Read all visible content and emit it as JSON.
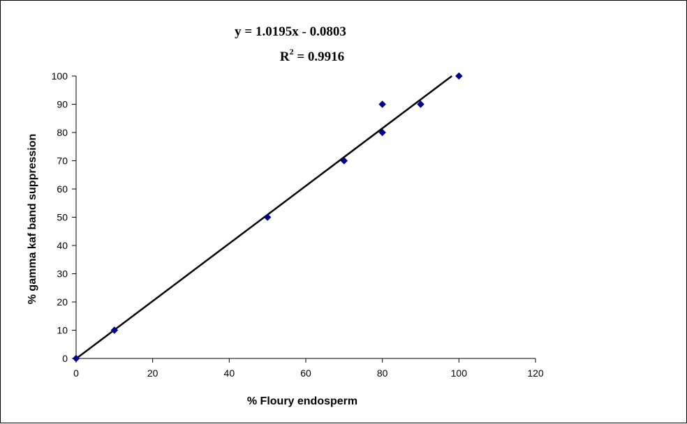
{
  "chart_data": {
    "type": "scatter",
    "title": "",
    "xlabel": "% Floury endosperm",
    "ylabel": "% gamma kaf band suppression",
    "xlim": [
      0,
      120
    ],
    "ylim": [
      0,
      100
    ],
    "xticks": [
      0,
      20,
      40,
      60,
      80,
      100,
      120
    ],
    "yticks": [
      0,
      10,
      20,
      30,
      40,
      50,
      60,
      70,
      80,
      90,
      100
    ],
    "x_tick_labels": [
      "0",
      "20",
      "40",
      "60",
      "80",
      "100",
      "120"
    ],
    "y_tick_labels": [
      "0",
      "10",
      "20",
      "30",
      "40",
      "50",
      "60",
      "70",
      "80",
      "90",
      "100"
    ],
    "grid": false,
    "legend": "none",
    "marker_color": "#00008B",
    "line_color": "#000000",
    "series": [
      {
        "x": [
          0,
          10,
          50,
          70,
          80,
          80,
          90,
          100
        ],
        "y": [
          0,
          10,
          50,
          70,
          90,
          80,
          90,
          100
        ]
      }
    ],
    "trendline": {
      "slope": 1.0195,
      "intercept": -0.0803
    },
    "annotations": {
      "equation": "y = 1.0195x - 0.0803",
      "r_squared_prefix": "R",
      "r_squared_exponent": "2",
      "r_squared_suffix": " = 0.9916"
    }
  }
}
